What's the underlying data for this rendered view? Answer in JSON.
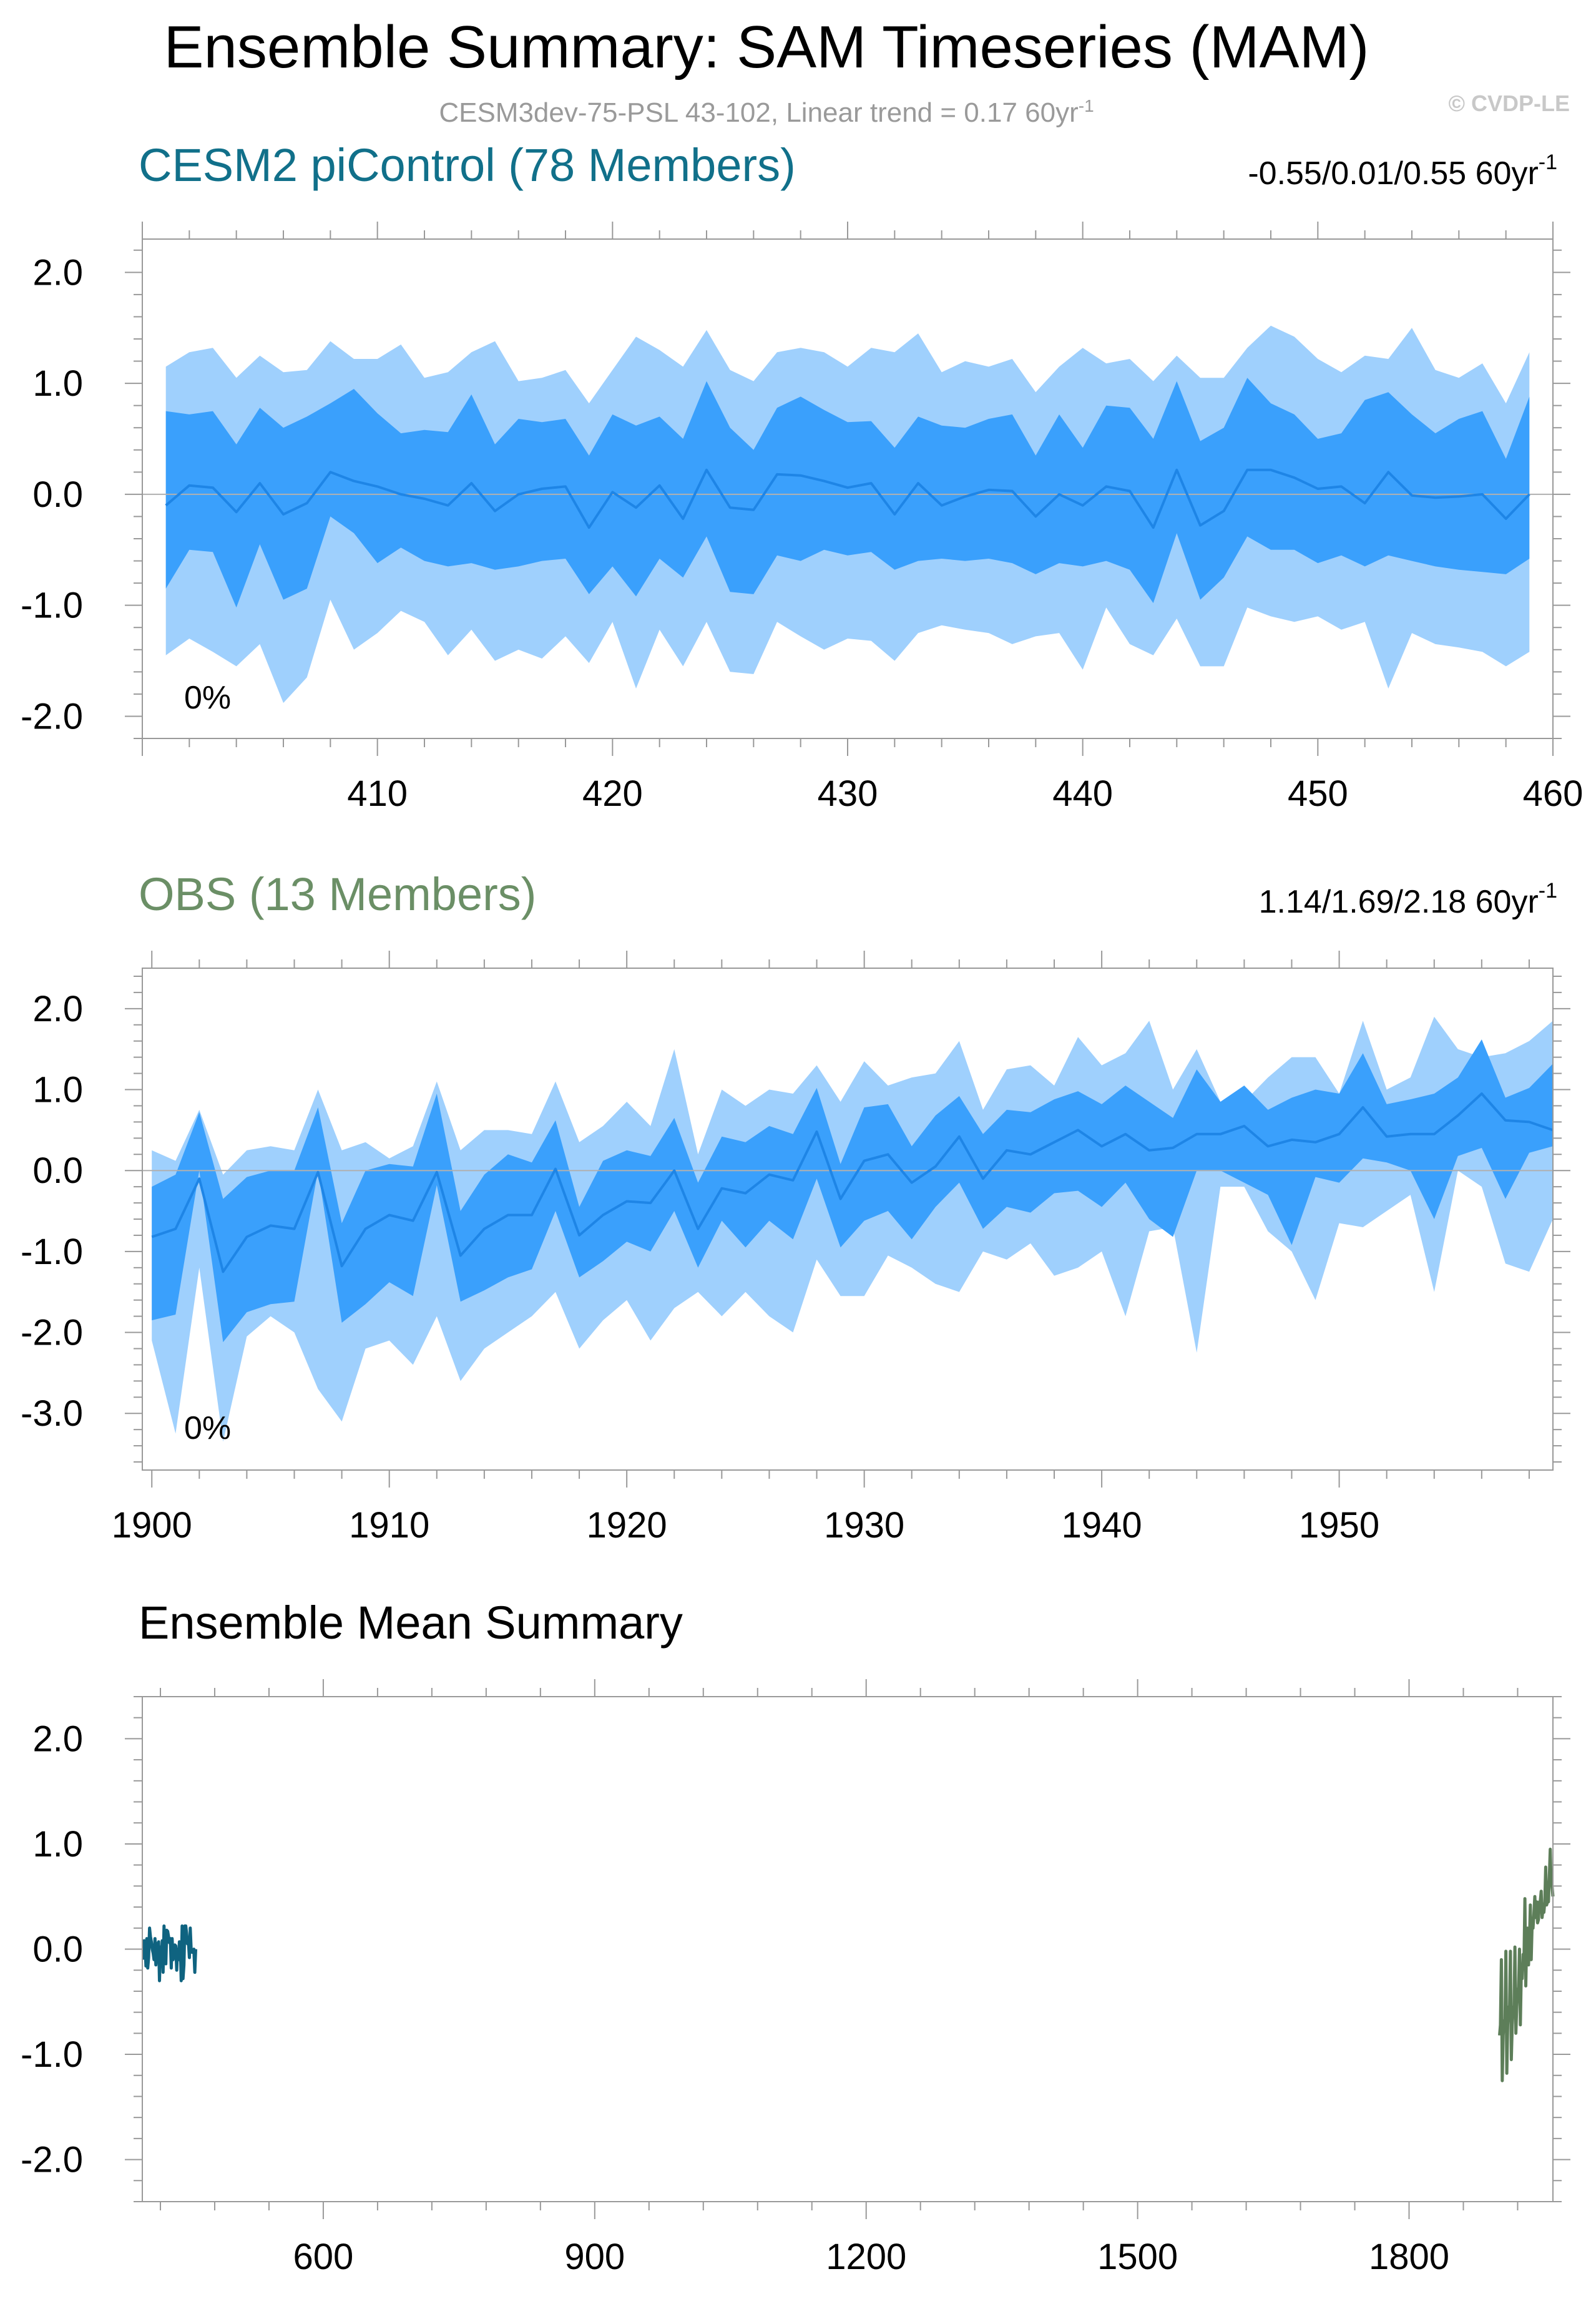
{
  "header": {
    "title": "Ensemble Summary: SAM Timeseries (MAM)",
    "subtitle": "CESM3dev-75-PSL 43-102, Linear trend = 0.17 60yr",
    "subtitle_sup": "-1",
    "watermark": "© CVDP-LE"
  },
  "colors": {
    "outer_band": "#9fd0fd",
    "inner_band": "#3aa0fc",
    "mean_line": "#1e85e6",
    "cesm_title": "#11708a",
    "obs_title": "#6b8f66",
    "cesm_mean": "#0f6380",
    "obs_mean": "#5d7e59",
    "zero_line": "#b0b0b0"
  },
  "chart_data": [
    {
      "id": "cesm",
      "type": "area",
      "title": "CESM2 piControl (78 Members)",
      "range_text": "-0.55/0.01/0.55 60yr",
      "range_sup": "-1",
      "percent_label": "0%",
      "xlim": [
        400,
        460
      ],
      "ylim": [
        -2.2,
        2.3
      ],
      "xticks": [
        410,
        420,
        430,
        440,
        450,
        460
      ],
      "xtick_labels": [
        "410",
        "420",
        "430",
        "440",
        "450",
        "460"
      ],
      "yticks": [
        2.0,
        1.0,
        0.0,
        -1.0,
        -2.0
      ],
      "ytick_labels": [
        "2.0",
        "1.0",
        "0.0",
        "-1.0",
        "-2.0"
      ],
      "x_start": 401,
      "mean": [
        -0.1,
        0.08,
        0.06,
        -0.16,
        0.1,
        -0.18,
        -0.08,
        0.2,
        0.12,
        0.07,
        0.0,
        -0.04,
        -0.1,
        0.1,
        -0.15,
        0.0,
        0.05,
        0.07,
        -0.3,
        0.02,
        -0.12,
        0.08,
        -0.22,
        0.22,
        -0.12,
        -0.14,
        0.18,
        0.17,
        0.12,
        0.06,
        0.1,
        -0.18,
        0.1,
        -0.1,
        -0.02,
        0.04,
        0.03,
        -0.2,
        0.0,
        -0.1,
        0.07,
        0.03,
        -0.3,
        0.22,
        -0.28,
        -0.15,
        0.22,
        0.22,
        0.15,
        0.05,
        0.07,
        -0.08,
        0.2,
        -0.01,
        -0.03,
        -0.02,
        0.0,
        -0.22,
        0.0
      ],
      "p25": [
        -0.85,
        -0.5,
        -0.52,
        -1.02,
        -0.45,
        -0.95,
        -0.85,
        -0.2,
        -0.35,
        -0.62,
        -0.48,
        -0.6,
        -0.65,
        -0.62,
        -0.68,
        -0.65,
        -0.6,
        -0.58,
        -0.9,
        -0.65,
        -0.92,
        -0.58,
        -0.75,
        -0.38,
        -0.88,
        -0.9,
        -0.55,
        -0.6,
        -0.5,
        -0.55,
        -0.52,
        -0.68,
        -0.6,
        -0.58,
        -0.6,
        -0.58,
        -0.62,
        -0.72,
        -0.62,
        -0.65,
        -0.6,
        -0.68,
        -0.98,
        -0.35,
        -0.95,
        -0.75,
        -0.38,
        -0.5,
        -0.5,
        -0.62,
        -0.55,
        -0.65,
        -0.55,
        -0.6,
        -0.65,
        -0.68,
        -0.7,
        -0.72,
        -0.58
      ],
      "p75": [
        0.75,
        0.72,
        0.75,
        0.45,
        0.78,
        0.6,
        0.7,
        0.82,
        0.95,
        0.73,
        0.55,
        0.58,
        0.56,
        0.9,
        0.45,
        0.68,
        0.65,
        0.68,
        0.35,
        0.72,
        0.62,
        0.7,
        0.5,
        1.02,
        0.6,
        0.4,
        0.78,
        0.88,
        0.76,
        0.65,
        0.66,
        0.42,
        0.7,
        0.62,
        0.6,
        0.68,
        0.72,
        0.35,
        0.72,
        0.42,
        0.8,
        0.78,
        0.5,
        1.02,
        0.48,
        0.6,
        1.05,
        0.82,
        0.72,
        0.5,
        0.55,
        0.85,
        0.92,
        0.72,
        0.55,
        0.68,
        0.75,
        0.32,
        0.88
      ],
      "p10": [
        -1.45,
        -1.3,
        -1.42,
        -1.55,
        -1.35,
        -1.88,
        -1.65,
        -0.95,
        -1.4,
        -1.25,
        -1.05,
        -1.15,
        -1.45,
        -1.22,
        -1.5,
        -1.4,
        -1.48,
        -1.28,
        -1.52,
        -1.15,
        -1.75,
        -1.22,
        -1.55,
        -1.15,
        -1.6,
        -1.62,
        -1.15,
        -1.28,
        -1.4,
        -1.3,
        -1.32,
        -1.5,
        -1.25,
        -1.18,
        -1.22,
        -1.25,
        -1.35,
        -1.28,
        -1.25,
        -1.58,
        -1.02,
        -1.35,
        -1.45,
        -1.12,
        -1.55,
        -1.55,
        -1.02,
        -1.1,
        -1.15,
        -1.1,
        -1.22,
        -1.15,
        -1.75,
        -1.25,
        -1.35,
        -1.38,
        -1.42,
        -1.55,
        -1.42
      ],
      "p90": [
        1.15,
        1.28,
        1.32,
        1.05,
        1.25,
        1.1,
        1.12,
        1.38,
        1.22,
        1.22,
        1.35,
        1.05,
        1.1,
        1.28,
        1.38,
        1.02,
        1.05,
        1.12,
        0.82,
        1.12,
        1.42,
        1.3,
        1.15,
        1.48,
        1.12,
        1.02,
        1.28,
        1.32,
        1.28,
        1.15,
        1.32,
        1.28,
        1.45,
        1.1,
        1.2,
        1.15,
        1.22,
        0.92,
        1.15,
        1.32,
        1.18,
        1.22,
        1.02,
        1.25,
        1.05,
        1.05,
        1.32,
        1.52,
        1.42,
        1.22,
        1.1,
        1.25,
        1.22,
        1.5,
        1.12,
        1.05,
        1.18,
        0.82,
        1.28
      ]
    },
    {
      "id": "obs",
      "type": "area",
      "title": "OBS (13 Members)",
      "range_text": "1.14/1.69/2.18 60yr",
      "range_sup": "-1",
      "percent_label": "0%",
      "xlim": [
        1899.6,
        1959
      ],
      "ylim": [
        -3.7,
        2.5
      ],
      "xticks": [
        1900,
        1910,
        1920,
        1930,
        1940,
        1950
      ],
      "xtick_labels": [
        "1900",
        "1910",
        "1920",
        "1930",
        "1940",
        "1950"
      ],
      "yticks": [
        2.0,
        1.0,
        0.0,
        -1.0,
        -2.0,
        -3.0
      ],
      "ytick_labels": [
        "2.0",
        "1.0",
        "0.0",
        "-1.0",
        "-2.0",
        "-3.0"
      ],
      "x_start": 1900,
      "mean": [
        -0.82,
        -0.72,
        -0.1,
        -1.25,
        -0.82,
        -0.68,
        -0.72,
        -0.02,
        -1.18,
        -0.72,
        -0.55,
        -0.62,
        -0.02,
        -1.05,
        -0.72,
        -0.55,
        -0.55,
        0.02,
        -0.8,
        -0.55,
        -0.38,
        -0.4,
        0.0,
        -0.72,
        -0.22,
        -0.28,
        -0.05,
        -0.12,
        0.48,
        -0.35,
        0.12,
        0.2,
        -0.15,
        0.05,
        0.42,
        -0.1,
        0.25,
        0.2,
        0.35,
        0.5,
        0.3,
        0.45,
        0.25,
        0.28,
        0.45,
        0.45,
        0.55,
        0.3,
        0.38,
        0.35,
        0.45,
        0.78,
        0.42,
        0.45,
        0.45,
        0.68,
        0.95,
        0.62,
        0.6,
        0.5
      ],
      "p25": [
        -1.85,
        -1.78,
        0.0,
        -2.12,
        -1.75,
        -1.65,
        -1.62,
        0.0,
        -1.88,
        -1.65,
        -1.38,
        -1.55,
        -0.18,
        -1.62,
        -1.48,
        -1.32,
        -1.22,
        -0.5,
        -1.32,
        -1.12,
        -0.88,
        -1.0,
        -0.5,
        -1.2,
        -0.62,
        -0.95,
        -0.62,
        -0.85,
        -0.1,
        -0.95,
        -0.62,
        -0.5,
        -0.85,
        -0.45,
        -0.15,
        -0.72,
        -0.45,
        -0.52,
        -0.28,
        -0.25,
        -0.45,
        -0.15,
        -0.6,
        -0.82,
        0.0,
        0.0,
        -0.15,
        -0.3,
        -0.92,
        -0.08,
        -0.15,
        0.15,
        0.1,
        0.0,
        -0.6,
        0.18,
        0.28,
        -0.35,
        0.22,
        0.3
      ],
      "p75": [
        -0.2,
        -0.05,
        0.72,
        -0.35,
        -0.08,
        0.0,
        0.0,
        0.78,
        -0.65,
        0.0,
        0.08,
        0.05,
        0.95,
        -0.5,
        -0.05,
        0.2,
        0.1,
        0.62,
        -0.45,
        0.12,
        0.25,
        0.18,
        0.65,
        -0.15,
        0.42,
        0.35,
        0.55,
        0.45,
        1.02,
        0.08,
        0.78,
        0.82,
        0.3,
        0.68,
        0.92,
        0.45,
        0.75,
        0.72,
        0.88,
        0.98,
        0.82,
        1.05,
        0.85,
        0.65,
        1.25,
        0.85,
        1.05,
        0.75,
        0.9,
        1.0,
        0.95,
        1.45,
        0.82,
        0.88,
        0.95,
        1.15,
        1.62,
        0.9,
        1.02,
        1.32
      ],
      "p10": [
        -2.1,
        -3.25,
        -1.2,
        -3.35,
        -2.05,
        -1.8,
        -2.0,
        -2.7,
        -3.1,
        -2.2,
        -2.1,
        -2.4,
        -1.8,
        -2.6,
        -2.2,
        -2.0,
        -1.8,
        -1.5,
        -2.2,
        -1.85,
        -1.6,
        -2.1,
        -1.7,
        -1.5,
        -1.8,
        -1.5,
        -1.8,
        -2.0,
        -1.1,
        -1.55,
        -1.55,
        -1.05,
        -1.2,
        -1.4,
        -1.5,
        -1.0,
        -1.1,
        -0.9,
        -1.3,
        -1.2,
        -1.0,
        -1.8,
        -0.75,
        -0.7,
        -2.25,
        -0.2,
        -0.2,
        -0.75,
        -1.0,
        -1.6,
        -0.65,
        -0.7,
        -0.5,
        -0.3,
        -1.5,
        0.0,
        -0.2,
        -1.15,
        -1.25,
        -0.6
      ],
      "p90": [
        0.25,
        0.12,
        0.75,
        -0.05,
        0.25,
        0.3,
        0.25,
        1.0,
        0.25,
        0.35,
        0.15,
        0.3,
        1.1,
        0.25,
        0.5,
        0.5,
        0.45,
        1.1,
        0.35,
        0.55,
        0.85,
        0.55,
        1.5,
        0.2,
        1.0,
        0.8,
        1.0,
        0.95,
        1.3,
        0.85,
        1.35,
        1.05,
        1.15,
        1.2,
        1.6,
        0.75,
        1.25,
        1.3,
        1.05,
        1.65,
        1.3,
        1.45,
        1.85,
        1.0,
        1.5,
        0.85,
        0.85,
        1.15,
        1.4,
        1.4,
        0.95,
        1.85,
        1.0,
        1.15,
        1.9,
        1.5,
        1.4,
        1.45,
        1.6,
        1.85
      ]
    },
    {
      "id": "ensemble-mean",
      "type": "line",
      "title": "Ensemble Mean Summary",
      "xlim": [
        400,
        1959
      ],
      "ylim": [
        -2.4,
        2.4
      ],
      "xticks": [
        600,
        900,
        1200,
        1500,
        1800
      ],
      "xtick_labels": [
        "600",
        "900",
        "1200",
        "1500",
        "1800"
      ],
      "yticks": [
        2.0,
        1.0,
        0.0,
        -1.0,
        -2.0
      ],
      "ytick_labels": [
        "2.0",
        "1.0",
        "0.0",
        "-1.0",
        "-2.0"
      ],
      "series": [
        {
          "name": "CESM2 piControl",
          "ref": "cesm",
          "color_key": "cesm_mean"
        },
        {
          "name": "OBS",
          "ref": "obs",
          "color_key": "obs_mean"
        }
      ]
    }
  ]
}
